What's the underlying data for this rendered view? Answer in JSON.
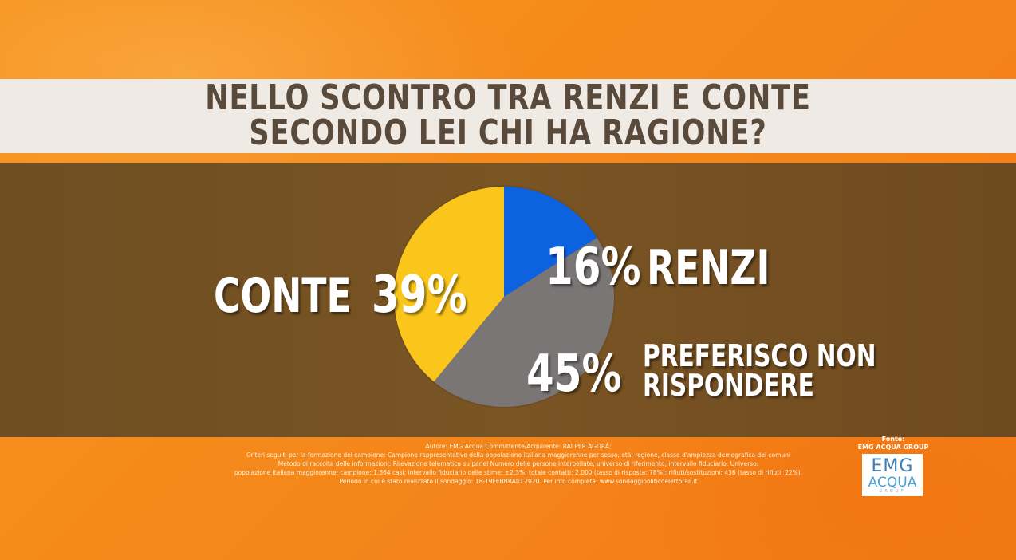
{
  "chart_data": {
    "type": "pie",
    "title": "NELLO SCONTRO TRA RENZI E CONTE SECONDO LEI CHI HA RAGIONE?",
    "title_lines": [
      "NELLO SCONTRO TRA RENZI E CONTE",
      "SECONDO LEI CHI HA RAGIONE?"
    ],
    "slices": [
      {
        "label": "RENZI",
        "value": 16,
        "value_label": "16%",
        "color": "#0a62e0"
      },
      {
        "label": "PREFERISCO NON RISPONDERE",
        "label_lines": [
          "PREFERISCO NON",
          "RISPONDERE"
        ],
        "value": 45,
        "value_label": "45%",
        "color": "#7a7676"
      },
      {
        "label": "CONTE",
        "value": 39,
        "value_label": "39%",
        "color": "#fbc61d"
      }
    ]
  },
  "footer": {
    "lines": [
      "Autore: EMG Acqua Committente/Acquirente: RAI PER AGORÀ;",
      "Criteri seguiti per la formazione del campione: Campione rappresentativo della popolazione italiana maggiorenne per sesso, età, regione, classe d'ampiezza demografica dei comuni",
      "Metodo di raccolta delle informazioni: Rilevazione telematica su panel Numero delle persone interpellate, universo di riferimento, intervallo fiduciario: Universo:",
      "popolazione italiana maggiorenne; campione: 1.564 casi; intervallo fiduciario delle stime: ±2,3%; totale contatti: 2.000 (tasso di risposta: 78%); rifiuti/sostituzioni: 436 (tasso di rifiuti: 22%).",
      "Periodo in cui è stato realizzato il sondaggio: 18-19FEBBRAIO 2020. Per info completa: www.sondaggipoliticoelettorali.it"
    ]
  },
  "source": {
    "label_lines": [
      "Fonte:",
      "EMG ACQUA GROUP"
    ],
    "logo_emg": "EMG",
    "logo_acqua": "ACQUA",
    "logo_group": "GROUP"
  }
}
